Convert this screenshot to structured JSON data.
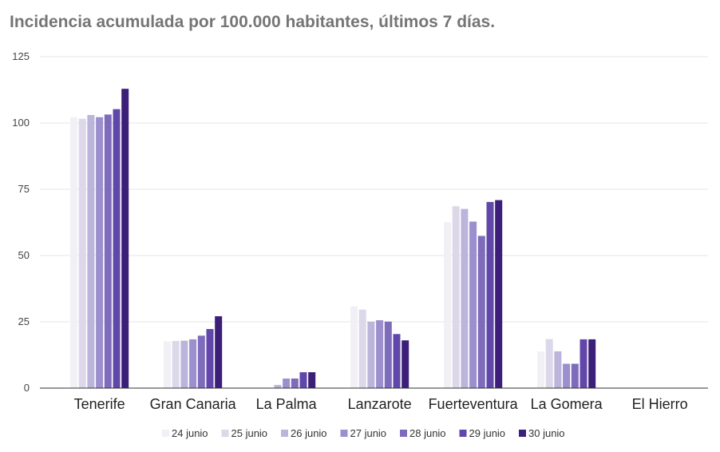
{
  "chart_data": {
    "type": "bar",
    "title": "Incidencia acumulada por 100.000 habitantes, últimos 7 días.",
    "xlabel": "",
    "ylabel": "",
    "ylim": [
      0,
      125
    ],
    "yticks": [
      0,
      25,
      50,
      75,
      100,
      125
    ],
    "grid": true,
    "legend_position": "bottom",
    "categories": [
      "Tenerife",
      "Gran Canaria",
      "La Palma",
      "Lanzarote",
      "Fuerteventura",
      "La Gomera",
      "El Hierro"
    ],
    "series": [
      {
        "name": "24 junio",
        "color": "#f1f0f5",
        "values": [
          102.2,
          17.6,
          0,
          30.8,
          62.6,
          13.8,
          0
        ]
      },
      {
        "name": "25 junio",
        "color": "#dcd8ea",
        "values": [
          101.6,
          17.8,
          0,
          29.6,
          68.6,
          18.5,
          0
        ]
      },
      {
        "name": "26 junio",
        "color": "#bcb5db",
        "values": [
          103.0,
          17.9,
          1.2,
          25.1,
          67.6,
          13.9,
          0
        ]
      },
      {
        "name": "27 junio",
        "color": "#9c8fce",
        "values": [
          102.2,
          18.4,
          3.6,
          25.6,
          62.8,
          9.2,
          0
        ]
      },
      {
        "name": "28 junio",
        "color": "#7e6cbb",
        "values": [
          103.2,
          19.8,
          3.6,
          25.1,
          57.4,
          9.2,
          0
        ]
      },
      {
        "name": "29 junio",
        "color": "#6247aa",
        "values": [
          105.2,
          22.3,
          6.0,
          20.4,
          70.2,
          18.4,
          0
        ]
      },
      {
        "name": "30 junio",
        "color": "#3b1f78",
        "values": [
          112.9,
          27.1,
          6.0,
          18.0,
          70.9,
          18.4,
          0
        ]
      }
    ]
  }
}
